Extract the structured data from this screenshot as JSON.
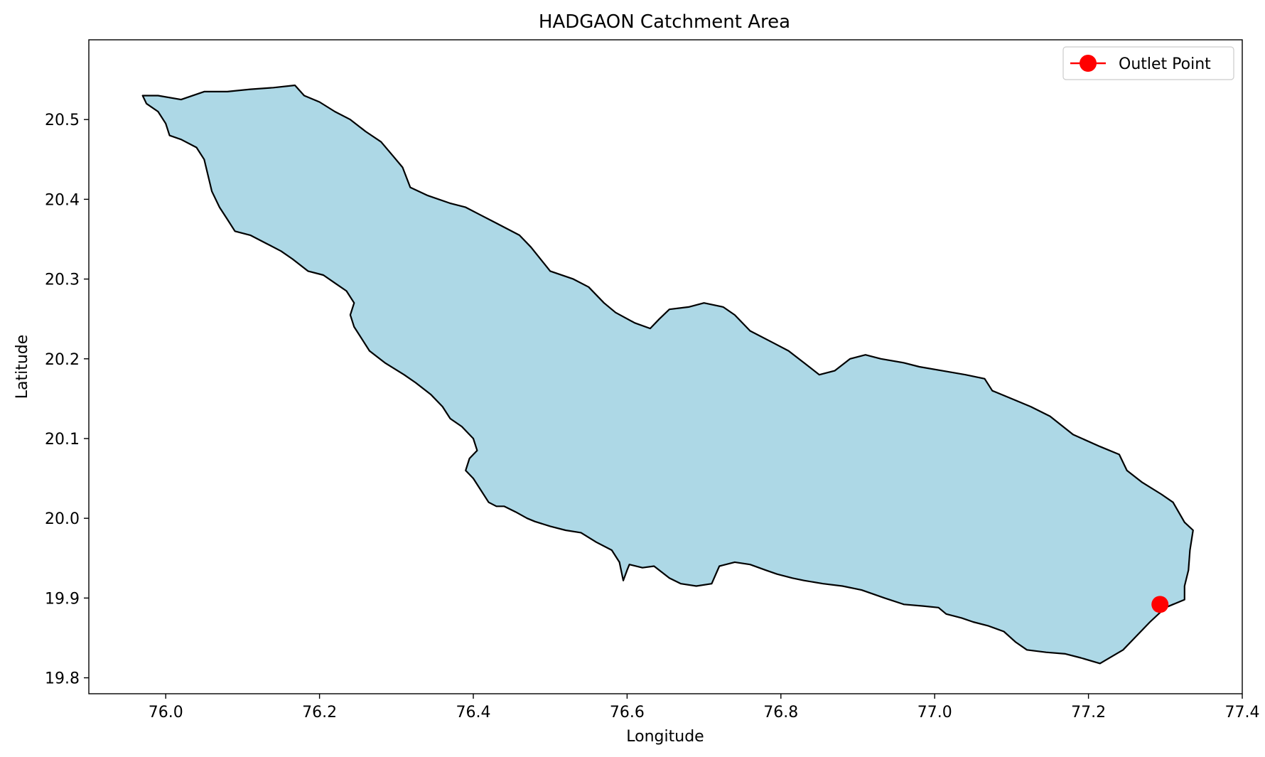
{
  "chart_data": {
    "type": "map",
    "title": "HADGAON Catchment Area",
    "xlabel": "Longitude",
    "ylabel": "Latitude",
    "xlim": [
      75.9,
      77.4
    ],
    "ylim": [
      19.78,
      20.6
    ],
    "xticks": [
      "76.0",
      "76.2",
      "76.4",
      "76.6",
      "76.8",
      "77.0",
      "77.2",
      "77.4"
    ],
    "yticks": [
      "19.8",
      "19.9",
      "20.0",
      "20.1",
      "20.2",
      "20.3",
      "20.4",
      "20.5"
    ],
    "grid": false,
    "legend": {
      "placement": "top-right",
      "entries": [
        "Outlet Point"
      ]
    },
    "catchment": {
      "fill_color": "#add8e6",
      "edge_color": "#000000",
      "boundary": [
        [
          75.97,
          20.53
        ],
        [
          75.99,
          20.53
        ],
        [
          76.02,
          20.525
        ],
        [
          76.05,
          20.535
        ],
        [
          76.08,
          20.535
        ],
        [
          76.11,
          20.538
        ],
        [
          76.14,
          20.54
        ],
        [
          76.168,
          20.543
        ],
        [
          76.18,
          20.53
        ],
        [
          76.2,
          20.522
        ],
        [
          76.22,
          20.51
        ],
        [
          76.24,
          20.5
        ],
        [
          76.26,
          20.485
        ],
        [
          76.28,
          20.472
        ],
        [
          76.295,
          20.455
        ],
        [
          76.308,
          20.44
        ],
        [
          76.318,
          20.415
        ],
        [
          76.34,
          20.405
        ],
        [
          76.37,
          20.395
        ],
        [
          76.39,
          20.39
        ],
        [
          76.41,
          20.38
        ],
        [
          76.43,
          20.37
        ],
        [
          76.46,
          20.355
        ],
        [
          76.475,
          20.34
        ],
        [
          76.5,
          20.31
        ],
        [
          76.53,
          20.3
        ],
        [
          76.55,
          20.29
        ],
        [
          76.57,
          20.27
        ],
        [
          76.585,
          20.258
        ],
        [
          76.61,
          20.245
        ],
        [
          76.63,
          20.238
        ],
        [
          76.642,
          20.25
        ],
        [
          76.655,
          20.262
        ],
        [
          76.68,
          20.265
        ],
        [
          76.7,
          20.27
        ],
        [
          76.725,
          20.265
        ],
        [
          76.74,
          20.255
        ],
        [
          76.76,
          20.235
        ],
        [
          76.79,
          20.22
        ],
        [
          76.81,
          20.21
        ],
        [
          76.83,
          20.195
        ],
        [
          76.85,
          20.18
        ],
        [
          76.87,
          20.185
        ],
        [
          76.89,
          20.2
        ],
        [
          76.91,
          20.205
        ],
        [
          76.93,
          20.2
        ],
        [
          76.96,
          20.195
        ],
        [
          76.98,
          20.19
        ],
        [
          77.01,
          20.185
        ],
        [
          77.04,
          20.18
        ],
        [
          77.065,
          20.175
        ],
        [
          77.075,
          20.16
        ],
        [
          77.1,
          20.15
        ],
        [
          77.125,
          20.14
        ],
        [
          77.15,
          20.128
        ],
        [
          77.18,
          20.105
        ],
        [
          77.215,
          20.09
        ],
        [
          77.24,
          20.08
        ],
        [
          77.25,
          20.06
        ],
        [
          77.27,
          20.045
        ],
        [
          77.295,
          20.03
        ],
        [
          77.31,
          20.02
        ],
        [
          77.325,
          19.995
        ],
        [
          77.336,
          19.985
        ],
        [
          77.332,
          19.96
        ],
        [
          77.33,
          19.935
        ],
        [
          77.325,
          19.915
        ],
        [
          77.325,
          19.898
        ],
        [
          77.31,
          19.892
        ],
        [
          77.3,
          19.888
        ],
        [
          77.28,
          19.87
        ],
        [
          77.26,
          19.85
        ],
        [
          77.245,
          19.835
        ],
        [
          77.215,
          19.818
        ],
        [
          77.19,
          19.825
        ],
        [
          77.17,
          19.83
        ],
        [
          77.145,
          19.832
        ],
        [
          77.12,
          19.835
        ],
        [
          77.105,
          19.845
        ],
        [
          77.09,
          19.858
        ],
        [
          77.07,
          19.865
        ],
        [
          77.05,
          19.87
        ],
        [
          77.035,
          19.875
        ],
        [
          77.015,
          19.88
        ],
        [
          77.005,
          19.888
        ],
        [
          76.985,
          19.89
        ],
        [
          76.96,
          19.892
        ],
        [
          76.935,
          19.9
        ],
        [
          76.905,
          19.91
        ],
        [
          76.88,
          19.915
        ],
        [
          76.855,
          19.918
        ],
        [
          76.83,
          19.922
        ],
        [
          76.815,
          19.925
        ],
        [
          76.795,
          19.93
        ],
        [
          76.78,
          19.935
        ],
        [
          76.76,
          19.942
        ],
        [
          76.74,
          19.945
        ],
        [
          76.72,
          19.94
        ],
        [
          76.71,
          19.918
        ],
        [
          76.69,
          19.915
        ],
        [
          76.67,
          19.918
        ],
        [
          76.655,
          19.925
        ],
        [
          76.635,
          19.94
        ],
        [
          76.62,
          19.938
        ],
        [
          76.603,
          19.942
        ],
        [
          76.6,
          19.935
        ],
        [
          76.595,
          19.922
        ],
        [
          76.59,
          19.945
        ],
        [
          76.58,
          19.96
        ],
        [
          76.56,
          19.97
        ],
        [
          76.54,
          19.982
        ],
        [
          76.52,
          19.985
        ],
        [
          76.5,
          19.99
        ],
        [
          76.48,
          19.996
        ],
        [
          76.47,
          20.0
        ],
        [
          76.455,
          20.008
        ],
        [
          76.44,
          20.015
        ],
        [
          76.43,
          20.015
        ],
        [
          76.42,
          20.02
        ],
        [
          76.41,
          20.035
        ],
        [
          76.4,
          20.05
        ],
        [
          76.39,
          20.06
        ],
        [
          76.395,
          20.075
        ],
        [
          76.405,
          20.085
        ],
        [
          76.4,
          20.1
        ],
        [
          76.385,
          20.115
        ],
        [
          76.37,
          20.125
        ],
        [
          76.36,
          20.14
        ],
        [
          76.345,
          20.155
        ],
        [
          76.325,
          20.17
        ],
        [
          76.31,
          20.18
        ],
        [
          76.285,
          20.195
        ],
        [
          76.265,
          20.21
        ],
        [
          76.255,
          20.225
        ],
        [
          76.245,
          20.24
        ],
        [
          76.24,
          20.255
        ],
        [
          76.245,
          20.27
        ],
        [
          76.235,
          20.285
        ],
        [
          76.22,
          20.295
        ],
        [
          76.205,
          20.305
        ],
        [
          76.185,
          20.31
        ],
        [
          76.165,
          20.325
        ],
        [
          76.15,
          20.335
        ],
        [
          76.13,
          20.345
        ],
        [
          76.11,
          20.355
        ],
        [
          76.09,
          20.36
        ],
        [
          76.08,
          20.375
        ],
        [
          76.07,
          20.39
        ],
        [
          76.06,
          20.41
        ],
        [
          76.055,
          20.43
        ],
        [
          76.05,
          20.45
        ],
        [
          76.04,
          20.465
        ],
        [
          76.02,
          20.475
        ],
        [
          76.005,
          20.48
        ],
        [
          76.0,
          20.495
        ],
        [
          75.99,
          20.51
        ],
        [
          75.975,
          20.52
        ],
        [
          75.97,
          20.53
        ]
      ]
    },
    "outlet_point": {
      "name": "Outlet Point",
      "x": 77.293,
      "y": 19.892,
      "color": "#ff0000"
    }
  }
}
